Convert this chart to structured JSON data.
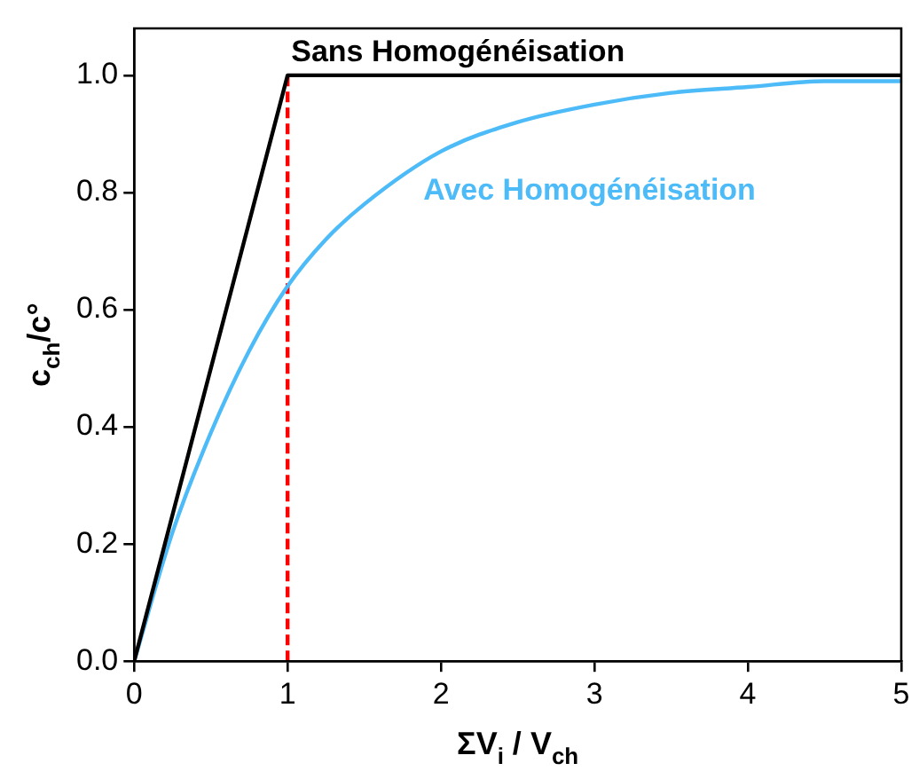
{
  "chart_data": {
    "type": "line",
    "xlabel": "ΣV$_{i}$ / V$_{ch}$",
    "ylabel": "c$_{ch}$/c°",
    "xlim": [
      0,
      5
    ],
    "xticks": [
      0,
      1,
      2,
      3,
      4,
      5
    ],
    "ylim": [
      0,
      1.08
    ],
    "yticks": [
      {
        "value": 0,
        "label": "0.0"
      },
      {
        "value": 0.2,
        "label": "0.2"
      },
      {
        "value": 0.4,
        "label": "0.4"
      },
      {
        "value": 0.6,
        "label": "0.6"
      },
      {
        "value": 0.8,
        "label": "0.8"
      },
      {
        "value": 1,
        "label": "1.0"
      }
    ],
    "grid": false,
    "legend": false,
    "marker": "none",
    "series": [
      {
        "name": "Sans Homogénéisation",
        "color": "#000000",
        "x": [
          0,
          1,
          5
        ],
        "values": [
          0,
          1,
          1
        ]
      },
      {
        "name": "Avec Homogénéisation",
        "color": "#4dbbf7",
        "x": [
          0,
          0.25,
          0.5,
          0.75,
          1,
          1.25,
          1.5,
          2,
          2.5,
          3,
          3.5,
          4,
          4.5,
          5
        ],
        "values": [
          0,
          0.22,
          0.39,
          0.53,
          0.64,
          0.72,
          0.78,
          0.87,
          0.92,
          0.95,
          0.97,
          0.98,
          0.99,
          0.99
        ]
      },
      {
        "color": "#ff0000",
        "x": [
          1,
          1
        ],
        "values": [
          0,
          1
        ],
        "line_style": "dashed"
      }
    ]
  }
}
